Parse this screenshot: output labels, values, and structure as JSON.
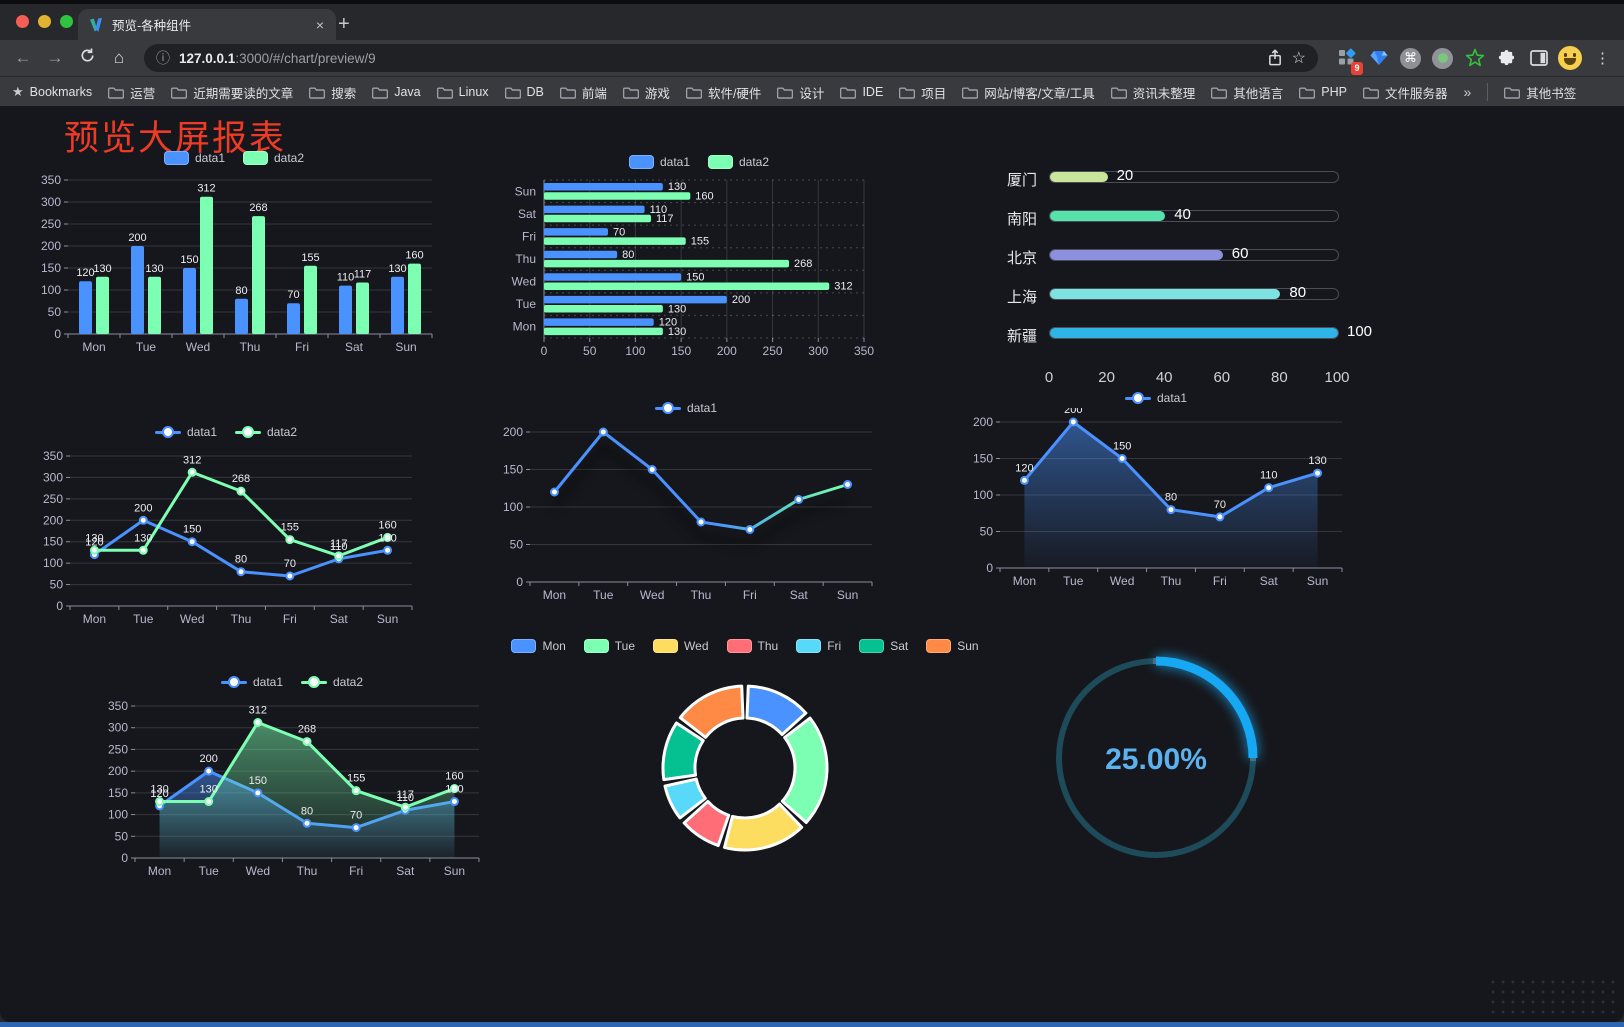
{
  "browser": {
    "tab": {
      "title": "预览-各种组件",
      "close_glyph": "×",
      "new_tab_glyph": "+"
    },
    "url": {
      "host": "127.0.0.1",
      "rest": ":3000/#/chart/preview/9"
    },
    "icons": {
      "back": "←",
      "forward": "→",
      "home": "⌂",
      "info": "ⓘ",
      "star": "☆",
      "kebab": "⋮",
      "command": "⌘",
      "bookmarks_star": "★"
    },
    "bookmarks_label": "Bookmarks",
    "bookmarks": [
      "运营",
      "近期需要读的文章",
      "搜索",
      "Java",
      "Linux",
      "DB",
      "前端",
      "游戏",
      "软件/硬件",
      "设计",
      "IDE",
      "项目",
      "网站/博客/文章/工具",
      "资讯未整理",
      "其他语言",
      "PHP",
      "文件服务器"
    ],
    "bookmarks_overflow": "»",
    "other_bookmarks": "其他书签",
    "extension_badge": "9"
  },
  "page": {
    "title": "预览大屏报表",
    "title_color": "#ee3b26"
  },
  "chart_data": [
    {
      "id": "grouped-bar",
      "type": "bar",
      "categories": [
        "Mon",
        "Tue",
        "Wed",
        "Thu",
        "Fri",
        "Sat",
        "Sun"
      ],
      "series": [
        {
          "name": "data1",
          "color": "#4992ff",
          "values": [
            120,
            200,
            150,
            80,
            70,
            110,
            130
          ]
        },
        {
          "name": "data2",
          "color": "#7cffb2",
          "values": [
            130,
            130,
            312,
            268,
            155,
            117,
            160
          ]
        }
      ],
      "ylim": [
        0,
        350
      ],
      "ytick_step": 50,
      "legend": true,
      "value_labels": true
    },
    {
      "id": "horizontal-bar",
      "type": "hbar",
      "categories": [
        "Mon",
        "Tue",
        "Wed",
        "Thu",
        "Fri",
        "Sat",
        "Sun"
      ],
      "series": [
        {
          "name": "data1",
          "color": "#4992ff",
          "values": [
            120,
            200,
            150,
            80,
            70,
            110,
            130
          ]
        },
        {
          "name": "data2",
          "color": "#7cffb2",
          "values": [
            130,
            130,
            312,
            268,
            155,
            117,
            160
          ]
        }
      ],
      "xlim": [
        0,
        350
      ],
      "xtick_step": 50,
      "legend": true,
      "value_labels": true
    },
    {
      "id": "progress-bars",
      "type": "progress",
      "max": 100,
      "axis_ticks": [
        0,
        20,
        40,
        60,
        80,
        100
      ],
      "rows": [
        {
          "label": "厦门",
          "value": 20,
          "color": "#c8e79b"
        },
        {
          "label": "南阳",
          "value": 40,
          "color": "#57e1ac"
        },
        {
          "label": "北京",
          "value": 60,
          "color": "#8d90dc"
        },
        {
          "label": "上海",
          "value": 80,
          "color": "#7fe2e2"
        },
        {
          "label": "新疆",
          "value": 100,
          "color": "#2fb4e7"
        }
      ]
    },
    {
      "id": "two-series-line",
      "type": "line",
      "categories": [
        "Mon",
        "Tue",
        "Wed",
        "Thu",
        "Fri",
        "Sat",
        "Sun"
      ],
      "series": [
        {
          "name": "data1",
          "color": "#4992ff",
          "values": [
            120,
            200,
            150,
            80,
            70,
            110,
            130
          ]
        },
        {
          "name": "data2",
          "color": "#7cffb2",
          "values": [
            130,
            130,
            312,
            268,
            155,
            117,
            160
          ]
        }
      ],
      "ylim": [
        0,
        350
      ],
      "ytick_step": 50,
      "legend": true,
      "value_labels": true
    },
    {
      "id": "gradient-line",
      "type": "line",
      "categories": [
        "Mon",
        "Tue",
        "Wed",
        "Thu",
        "Fri",
        "Sat",
        "Sun"
      ],
      "series": [
        {
          "name": "data1",
          "color": "#4992ff",
          "gradient_to": "#7cffb2",
          "values": [
            120,
            200,
            150,
            80,
            70,
            110,
            130
          ]
        }
      ],
      "ylim": [
        0,
        200
      ],
      "ytick_step": 50,
      "legend": true,
      "value_labels": false,
      "shadow": true
    },
    {
      "id": "area-line",
      "type": "line",
      "categories": [
        "Mon",
        "Tue",
        "Wed",
        "Thu",
        "Fri",
        "Sat",
        "Sun"
      ],
      "series": [
        {
          "name": "data1",
          "color": "#4992ff",
          "area": true,
          "values": [
            120,
            200,
            150,
            80,
            70,
            110,
            130
          ]
        }
      ],
      "ylim": [
        0,
        200
      ],
      "ytick_step": 50,
      "legend": true,
      "value_labels": true
    },
    {
      "id": "two-series-area-line",
      "type": "line",
      "categories": [
        "Mon",
        "Tue",
        "Wed",
        "Thu",
        "Fri",
        "Sat",
        "Sun"
      ],
      "series": [
        {
          "name": "data1",
          "color": "#4992ff",
          "area": true,
          "values": [
            120,
            200,
            150,
            80,
            70,
            110,
            130
          ]
        },
        {
          "name": "data2",
          "color": "#7cffb2",
          "area": true,
          "values": [
            130,
            130,
            312,
            268,
            155,
            117,
            160
          ]
        }
      ],
      "ylim": [
        0,
        350
      ],
      "ytick_step": 50,
      "legend": true,
      "value_labels": true
    },
    {
      "id": "donut",
      "type": "pie",
      "legend": true,
      "slices": [
        {
          "label": "Mon",
          "value": 120,
          "color": "#4992ff"
        },
        {
          "label": "Tue",
          "value": 200,
          "color": "#7cffb2"
        },
        {
          "label": "Wed",
          "value": 150,
          "color": "#fddd60"
        },
        {
          "label": "Thu",
          "value": 80,
          "color": "#ff6e76"
        },
        {
          "label": "Fri",
          "value": 70,
          "color": "#58d9f9"
        },
        {
          "label": "Sat",
          "value": 110,
          "color": "#05c091"
        },
        {
          "label": "Sun",
          "value": 130,
          "color": "#ff8a45"
        }
      ]
    },
    {
      "id": "gauge",
      "type": "gauge",
      "value": 25,
      "max": 100,
      "label": "25.00%",
      "arc_color": "#17a8f3",
      "track_color": "#1d4b59",
      "text_color": "#5ab3f0"
    }
  ]
}
